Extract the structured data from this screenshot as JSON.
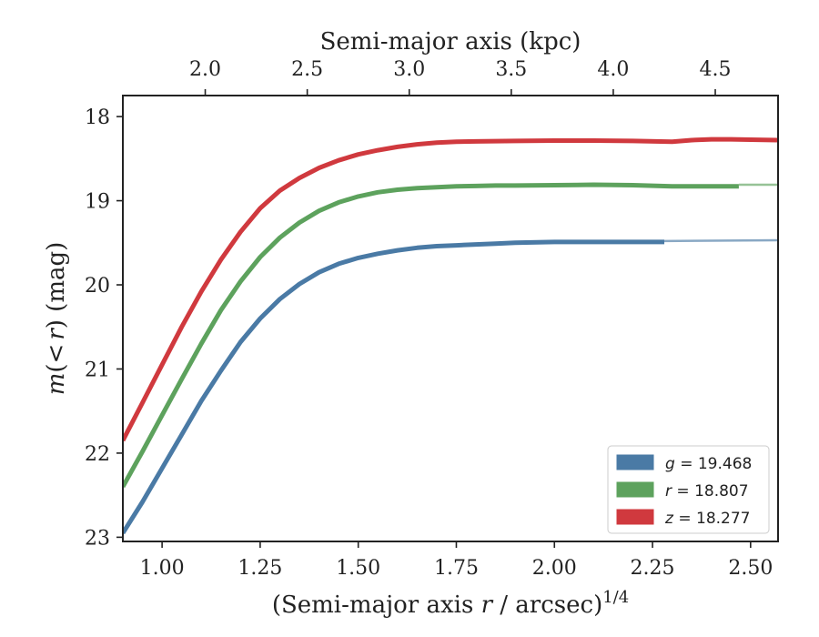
{
  "chart_data": {
    "type": "line",
    "xlabel": "(Semi-major axis r / arcsec)^{1/4}",
    "xlabel_parts": {
      "prefix": "(Semi-major axis ",
      "var": "r",
      "suffix": " / arcsec)",
      "sup": "1/4"
    },
    "x2label": "Semi-major axis (kpc)",
    "ylabel": "m(< r) (mag)",
    "ylabel_parts": {
      "var": "m",
      "open": "(",
      "lt": "<",
      "r": "r",
      "close": ")",
      "unit": " (mag)"
    },
    "xlim": [
      0.9,
      2.57
    ],
    "ylim": [
      23.05,
      17.75
    ],
    "x_ticks": [
      1.0,
      1.25,
      1.5,
      1.75,
      2.0,
      2.25,
      2.5
    ],
    "x_tick_labels": [
      "1.00",
      "1.25",
      "1.50",
      "1.75",
      "2.00",
      "2.25",
      "2.50"
    ],
    "y_ticks": [
      18,
      19,
      20,
      21,
      22,
      23
    ],
    "y_tick_labels": [
      "18",
      "19",
      "20",
      "21",
      "22",
      "23"
    ],
    "top_ticks_kpc": [
      2.0,
      2.5,
      3.0,
      3.5,
      4.0,
      4.5
    ],
    "top_tick_labels": [
      "2.0",
      "2.5",
      "3.0",
      "3.5",
      "4.0",
      "4.5"
    ],
    "top_tick_positions_x": [
      1.11,
      1.37,
      1.63,
      1.89,
      2.15,
      2.41
    ],
    "legend_position": "lower-right",
    "grid": false,
    "series": [
      {
        "name": "g = 19.468",
        "label_var": "g",
        "label_value": "19.468",
        "color": "#4a7aa5",
        "x": [
          0.9,
          0.95,
          1.0,
          1.05,
          1.1,
          1.15,
          1.2,
          1.25,
          1.3,
          1.35,
          1.4,
          1.45,
          1.5,
          1.55,
          1.6,
          1.65,
          1.7,
          1.75,
          1.8,
          1.85,
          1.9,
          2.0,
          2.1,
          2.2,
          2.28
        ],
        "y": [
          22.95,
          22.58,
          22.18,
          21.78,
          21.38,
          21.02,
          20.68,
          20.4,
          20.17,
          19.99,
          19.85,
          19.75,
          19.68,
          19.63,
          19.59,
          19.56,
          19.54,
          19.53,
          19.52,
          19.51,
          19.5,
          19.49,
          19.49,
          19.49,
          19.49
        ],
        "model_x": [
          2.28,
          2.57
        ],
        "model_y": [
          19.48,
          19.47
        ]
      },
      {
        "name": "r = 18.807",
        "label_var": "r",
        "label_value": "18.807",
        "color": "#5da25d",
        "x": [
          0.9,
          0.95,
          1.0,
          1.05,
          1.1,
          1.15,
          1.2,
          1.25,
          1.3,
          1.35,
          1.4,
          1.45,
          1.5,
          1.55,
          1.6,
          1.65,
          1.7,
          1.75,
          1.8,
          1.85,
          1.9,
          2.0,
          2.1,
          2.2,
          2.3,
          2.4,
          2.47
        ],
        "y": [
          22.4,
          21.98,
          21.55,
          21.12,
          20.7,
          20.3,
          19.96,
          19.67,
          19.44,
          19.26,
          19.12,
          19.02,
          18.95,
          18.9,
          18.87,
          18.85,
          18.84,
          18.83,
          18.825,
          18.82,
          18.82,
          18.815,
          18.81,
          18.815,
          18.83,
          18.83,
          18.83
        ],
        "model_x": [
          2.47,
          2.57
        ],
        "model_y": [
          18.81,
          18.81
        ]
      },
      {
        "name": "z = 18.277",
        "label_var": "z",
        "label_value": "18.277",
        "color": "#d0393e",
        "x": [
          0.9,
          0.95,
          1.0,
          1.05,
          1.1,
          1.15,
          1.2,
          1.25,
          1.3,
          1.35,
          1.4,
          1.45,
          1.5,
          1.55,
          1.6,
          1.65,
          1.7,
          1.75,
          1.8,
          1.9,
          2.0,
          2.1,
          2.2,
          2.3,
          2.35,
          2.4,
          2.45,
          2.5,
          2.57
        ],
        "y": [
          21.85,
          21.4,
          20.95,
          20.5,
          20.08,
          19.7,
          19.37,
          19.09,
          18.88,
          18.73,
          18.61,
          18.52,
          18.45,
          18.4,
          18.36,
          18.33,
          18.31,
          18.3,
          18.295,
          18.29,
          18.285,
          18.285,
          18.29,
          18.3,
          18.28,
          18.27,
          18.27,
          18.275,
          18.28
        ],
        "model_x": [],
        "model_y": []
      }
    ]
  }
}
